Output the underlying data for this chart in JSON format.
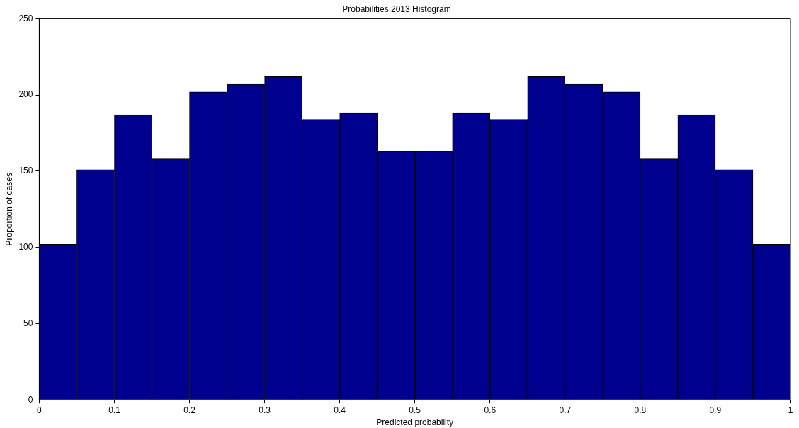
{
  "chart_data": {
    "type": "histogram",
    "title": "Probabilities 2013 Histogram",
    "xlabel": "Predicted probability",
    "ylabel": "Proportion of cases",
    "bins": [
      0,
      0.05,
      0.1,
      0.15,
      0.2,
      0.25,
      0.3,
      0.35,
      0.4,
      0.45,
      0.5,
      0.55,
      0.6,
      0.65,
      0.7,
      0.75,
      0.8,
      0.85,
      0.9,
      0.95,
      1
    ],
    "values": [
      102,
      151,
      187,
      158,
      202,
      207,
      212,
      184,
      188,
      163,
      163,
      188,
      184,
      212,
      207,
      202,
      158,
      187,
      151,
      102
    ],
    "color": "#00008f",
    "xlim": [
      0,
      1
    ],
    "xticks": [
      0,
      0.1,
      0.2,
      0.3,
      0.4,
      0.5,
      0.6,
      0.7,
      0.8,
      0.9,
      1
    ],
    "ylim": [
      0,
      250
    ],
    "yticks": [
      0,
      50,
      100,
      150,
      200,
      250
    ],
    "grid": false,
    "legend": false
  }
}
